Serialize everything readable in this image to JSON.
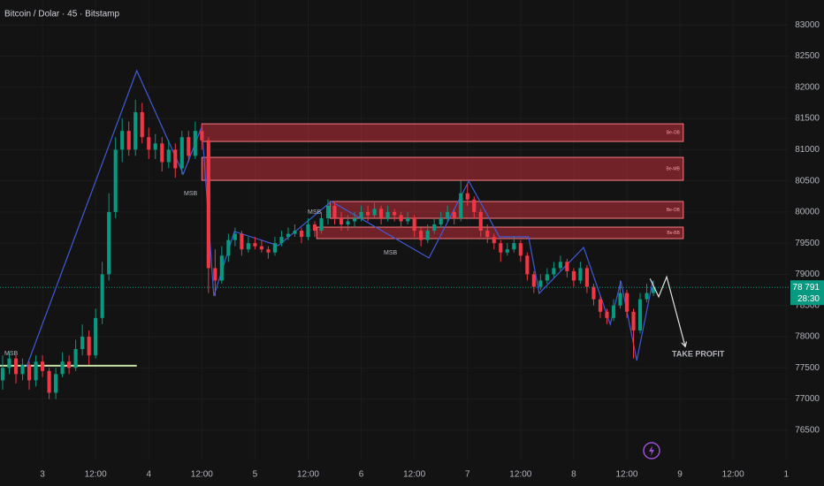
{
  "chart_data": {
    "type": "candlestick",
    "title": "Bitcoin / Dolar · 45 · Bitstamp",
    "up_color": "#089981",
    "down_color": "#f23645",
    "grid": true,
    "xlim": [
      -0.4,
      118.5
    ],
    "ylim": [
      76030,
      83400
    ],
    "xticks": [
      {
        "value": 6,
        "label": "3"
      },
      {
        "value": 14,
        "label": "12:00"
      },
      {
        "value": 22,
        "label": "4"
      },
      {
        "value": 30,
        "label": "12:00"
      },
      {
        "value": 38,
        "label": "5"
      },
      {
        "value": 46,
        "label": "12:00"
      },
      {
        "value": 54,
        "label": "6"
      },
      {
        "value": 62,
        "label": "12:00"
      },
      {
        "value": 70,
        "label": "7"
      },
      {
        "value": 78,
        "label": "12:00"
      },
      {
        "value": 86,
        "label": "8"
      },
      {
        "value": 94,
        "label": "12:00"
      },
      {
        "value": 102,
        "label": "9"
      },
      {
        "value": 110,
        "label": "12:00"
      },
      {
        "value": 118,
        "label": "1"
      }
    ],
    "yticks": [
      83000,
      82500,
      82000,
      81500,
      81000,
      80500,
      80000,
      79500,
      79000,
      78500,
      78000,
      77500,
      77000,
      76500
    ],
    "candles": [
      [
        77300,
        77700,
        77150,
        77500
      ],
      [
        77500,
        77750,
        77400,
        77650
      ],
      [
        77650,
        77700,
        77250,
        77400
      ],
      [
        77400,
        77650,
        77300,
        77550
      ],
      [
        77550,
        77600,
        77150,
        77300
      ],
      [
        77300,
        77700,
        77200,
        77600
      ],
      [
        77600,
        77700,
        77350,
        77450
      ],
      [
        77450,
        77500,
        77000,
        77100
      ],
      [
        77100,
        77500,
        77000,
        77400
      ],
      [
        77400,
        77750,
        77350,
        77600
      ],
      [
        77600,
        77700,
        77400,
        77500
      ],
      [
        77500,
        77950,
        77450,
        77800
      ],
      [
        77800,
        78200,
        77700,
        78000
      ],
      [
        78000,
        78100,
        77550,
        77700
      ],
      [
        77700,
        78450,
        77650,
        78300
      ],
      [
        78300,
        79200,
        78200,
        79000
      ],
      [
        79000,
        80300,
        78900,
        80000
      ],
      [
        80000,
        81200,
        79900,
        81000
      ],
      [
        81000,
        81500,
        80800,
        81300
      ],
      [
        81300,
        81450,
        80900,
        81000
      ],
      [
        81000,
        81800,
        80900,
        81600
      ],
      [
        81600,
        81750,
        81100,
        81200
      ],
      [
        81200,
        81350,
        80850,
        81000
      ],
      [
        81000,
        81250,
        80850,
        81100
      ],
      [
        81100,
        81200,
        80650,
        80800
      ],
      [
        80800,
        81150,
        80700,
        81000
      ],
      [
        81000,
        81100,
        80550,
        80700
      ],
      [
        80700,
        81300,
        80600,
        81200
      ],
      [
        81200,
        81300,
        80800,
        80900
      ],
      [
        80900,
        81450,
        80850,
        81300
      ],
      [
        81300,
        81400,
        81000,
        81150
      ],
      [
        81150,
        81200,
        78700,
        79100
      ],
      [
        79100,
        79400,
        78650,
        78900
      ],
      [
        78900,
        79450,
        78850,
        79300
      ],
      [
        79300,
        79650,
        79200,
        79550
      ],
      [
        79550,
        79750,
        79450,
        79650
      ],
      [
        79650,
        79700,
        79300,
        79400
      ],
      [
        79400,
        79600,
        79350,
        79500
      ],
      [
        79500,
        79600,
        79400,
        79450
      ],
      [
        79450,
        79550,
        79350,
        79400
      ],
      [
        79400,
        79450,
        79250,
        79350
      ],
      [
        79350,
        79600,
        79300,
        79500
      ],
      [
        79500,
        79700,
        79450,
        79600
      ],
      [
        79600,
        79750,
        79550,
        79650
      ],
      [
        79650,
        79800,
        79600,
        79700
      ],
      [
        79700,
        79750,
        79500,
        79600
      ],
      [
        79600,
        79900,
        79550,
        79800
      ],
      [
        79800,
        79850,
        79600,
        79700
      ],
      [
        79700,
        80000,
        79650,
        79900
      ],
      [
        79900,
        80200,
        79800,
        80100
      ],
      [
        80100,
        80150,
        79800,
        79900
      ],
      [
        79900,
        80000,
        79700,
        79800
      ],
      [
        79800,
        79950,
        79700,
        79850
      ],
      [
        79850,
        80000,
        79750,
        79900
      ],
      [
        79900,
        80100,
        79850,
        80000
      ],
      [
        80000,
        80100,
        79850,
        79950
      ],
      [
        79950,
        80150,
        79900,
        80050
      ],
      [
        80050,
        80100,
        79800,
        79900
      ],
      [
        79900,
        80100,
        79850,
        80000
      ],
      [
        80000,
        80050,
        79850,
        79950
      ],
      [
        79950,
        80000,
        79750,
        79850
      ],
      [
        79850,
        80000,
        79800,
        79900
      ],
      [
        79900,
        79950,
        79600,
        79700
      ],
      [
        79700,
        79750,
        79450,
        79550
      ],
      [
        79550,
        79800,
        79500,
        79700
      ],
      [
        79700,
        79900,
        79650,
        79800
      ],
      [
        79800,
        80000,
        79750,
        79900
      ],
      [
        79900,
        80100,
        79850,
        80000
      ],
      [
        80000,
        80050,
        79800,
        79900
      ],
      [
        79900,
        80500,
        79850,
        80300
      ],
      [
        80300,
        80450,
        80100,
        80200
      ],
      [
        80200,
        80250,
        79900,
        80000
      ],
      [
        80000,
        80050,
        79600,
        79700
      ],
      [
        79700,
        79800,
        79500,
        79600
      ],
      [
        79600,
        79650,
        79400,
        79500
      ],
      [
        79500,
        79550,
        79200,
        79350
      ],
      [
        79350,
        79500,
        79300,
        79400
      ],
      [
        79400,
        79600,
        79350,
        79500
      ],
      [
        79500,
        79550,
        79200,
        79300
      ],
      [
        79300,
        79350,
        78900,
        79000
      ],
      [
        79000,
        79050,
        78700,
        78800
      ],
      [
        78800,
        79000,
        78750,
        78900
      ],
      [
        78900,
        79100,
        78850,
        79000
      ],
      [
        79000,
        79200,
        78950,
        79100
      ],
      [
        79100,
        79300,
        79050,
        79200
      ],
      [
        79200,
        79250,
        78950,
        79050
      ],
      [
        79050,
        79100,
        78800,
        78900
      ],
      [
        78900,
        79200,
        78850,
        79100
      ],
      [
        79100,
        79150,
        78700,
        78800
      ],
      [
        78800,
        78850,
        78500,
        78600
      ],
      [
        78600,
        78650,
        78300,
        78400
      ],
      [
        78400,
        78450,
        78200,
        78300
      ],
      [
        78300,
        78600,
        78250,
        78500
      ],
      [
        78500,
        78900,
        78450,
        78700
      ],
      [
        78700,
        78750,
        78300,
        78400
      ],
      [
        78400,
        78450,
        77650,
        78100
      ],
      [
        78100,
        78700,
        78050,
        78600
      ],
      [
        78600,
        78850,
        78550,
        78700
      ],
      [
        78700,
        78900,
        78650,
        78791
      ]
    ],
    "zones": [
      {
        "label": "Be-OB",
        "x": [
          30,
          102.5
        ],
        "values": [
          81414,
          81131
        ]
      },
      {
        "label": "Be-MB",
        "x": [
          30,
          102.5
        ],
        "values": [
          80876,
          80508
        ]
      },
      {
        "label": "Be-OB",
        "x": [
          49.3,
          102.5
        ],
        "values": [
          80168,
          79899
        ]
      },
      {
        "label": "Be-BB",
        "x": [
          47.3,
          102.5
        ],
        "values": [
          79757,
          79573
        ]
      }
    ],
    "zigzag": {
      "color": "#3f5bd8",
      "x": [
        3.6,
        20.2,
        27.2,
        30,
        31.8,
        34.9,
        41.5,
        49.5,
        64.2,
        70.2,
        74.8,
        79.2,
        80.8,
        87.5,
        91.5,
        93.1,
        95.5,
        97.9
      ],
      "values": [
        77518,
        82266,
        80608,
        81373,
        78652,
        79687,
        79460,
        80169,
        79262,
        80495,
        79602,
        79602,
        78695,
        79432,
        78199,
        78893,
        77618,
        78893
      ]
    },
    "msb_line": {
      "color": "#c5e1a5",
      "x": [
        -0.4,
        20.2
      ],
      "values": [
        77534,
        77534
      ]
    },
    "projection": {
      "color": "#e0e0e0",
      "x": [
        97.5,
        98.8,
        100,
        102.8
      ],
      "values": [
        78930,
        78640,
        78960,
        77840
      ]
    },
    "annotations": [
      {
        "text": "MSB",
        "color": "#9ccc9c"
      },
      {
        "text": "MSB",
        "color": "#f25a5a"
      },
      {
        "text": "MSB",
        "color": "#9ccc9c"
      },
      {
        "text": "MSB",
        "color": "#f25a5a"
      },
      {
        "text": "TAKE PROFIT",
        "color": "#ffffff"
      }
    ],
    "last_price": {
      "value": 78791,
      "label": "78 791"
    },
    "countdown": "28:30"
  }
}
